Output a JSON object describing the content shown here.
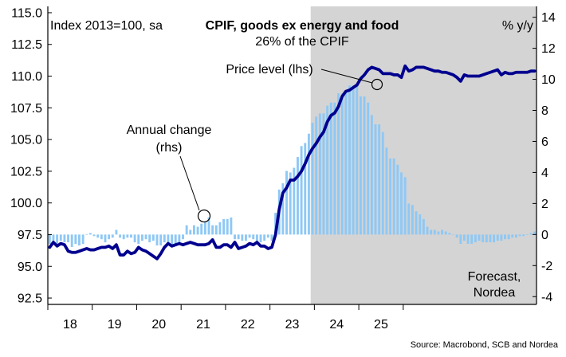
{
  "chart_data": {
    "type": "bar+line",
    "title": "CPIF, goods ex energy and food",
    "subtitle": "26% of the CPIF",
    "left_axis_label": "Index 2013=100, sa",
    "right_axis_label": "% y/y",
    "source": "Source: Macrobond, SCB and Nordea",
    "forecast_label": [
      "Forecast,",
      "Nordea"
    ],
    "annotations": {
      "price_level": "Price level (lhs)",
      "annual_change": [
        "Annual change",
        "(rhs)"
      ]
    },
    "x_tick_labels": [
      "18",
      "19",
      "20",
      "21",
      "22",
      "23",
      "24",
      "25"
    ],
    "ylim_left": [
      92.0,
      115.5
    ],
    "yticks_left": [
      "92.5",
      "95.0",
      "97.5",
      "100.0",
      "102.5",
      "105.0",
      "107.5",
      "110.0",
      "112.5",
      "115.0"
    ],
    "ylim_right": [
      -4.5,
      14.7
    ],
    "yticks_right": [
      "-4",
      "-2",
      "0",
      "2",
      "4",
      "6",
      "8",
      "10",
      "12",
      "14"
    ],
    "start_period": "2018-01",
    "forecast_start": "2023-12",
    "colors": {
      "line": "#00008f",
      "bars": "#8ec8f5",
      "forecast_shade": "#d4d4d4",
      "axis": "#000000"
    },
    "series": [
      {
        "name": "Price level (lhs)",
        "axis": "left",
        "type": "line",
        "values": [
          96.5,
          96.9,
          96.6,
          96.8,
          96.7,
          96.2,
          96.1,
          96.1,
          96.2,
          96.3,
          96.4,
          96.3,
          96.3,
          96.4,
          96.5,
          96.5,
          96.6,
          96.4,
          96.7,
          95.9,
          95.9,
          96.2,
          96.0,
          96.1,
          96.5,
          96.3,
          96.2,
          96.0,
          95.8,
          95.6,
          96.0,
          96.5,
          96.8,
          96.6,
          96.7,
          96.8,
          96.7,
          96.8,
          96.9,
          96.8,
          96.7,
          96.7,
          96.7,
          96.8,
          97.1,
          96.5,
          96.5,
          96.7,
          96.7,
          96.5,
          96.9,
          96.4,
          96.5,
          96.6,
          96.8,
          96.7,
          96.9,
          96.6,
          96.6,
          96.4,
          96.5,
          97.5,
          99.5,
          100.8,
          101.2,
          101.8,
          101.8,
          102.1,
          102.5,
          103.1,
          103.8,
          104.3,
          104.7,
          105.2,
          105.6,
          106.4,
          106.9,
          107.1,
          107.6,
          108.4,
          108.8,
          108.9,
          109.1,
          109.3,
          109.8,
          110.1,
          110.5,
          110.7,
          110.6,
          110.5,
          110.2,
          110.2,
          110.2,
          110.1,
          110.1,
          109.9,
          110.8,
          110.4,
          110.5,
          110.7,
          110.7,
          110.7,
          110.6,
          110.5,
          110.4,
          110.4,
          110.3,
          110.3,
          110.2,
          110.1,
          109.9,
          109.6,
          110.1,
          110.0,
          110.0,
          110.0,
          110.0,
          110.1,
          110.2,
          110.3,
          110.4,
          110.5,
          110.1,
          110.3,
          110.2,
          110.2,
          110.3,
          110.3,
          110.3,
          110.3,
          110.4,
          110.4
        ]
      },
      {
        "name": "Annual change (rhs)",
        "axis": "right",
        "type": "bar",
        "values": [
          -0.6,
          -0.4,
          -0.6,
          -0.4,
          -0.5,
          -0.5,
          -0.8,
          -0.6,
          -0.7,
          -0.6,
          0.0,
          0.1,
          -0.1,
          -0.2,
          -0.3,
          -0.5,
          -0.3,
          -0.2,
          0.3,
          -0.2,
          -0.3,
          -0.2,
          -0.2,
          -0.5,
          -0.6,
          -0.4,
          -0.3,
          -0.5,
          -0.4,
          -0.7,
          -0.7,
          -0.5,
          -0.6,
          -0.8,
          -0.7,
          -0.5,
          -0.3,
          0.6,
          0.3,
          0.6,
          0.5,
          0.7,
          0.8,
          1.1,
          0.6,
          0.6,
          0.8,
          1.0,
          1.0,
          1.1,
          -0.3,
          -0.3,
          -0.4,
          -0.4,
          -0.2,
          -0.3,
          -0.4,
          -0.5,
          -0.4,
          -0.2,
          -0.4,
          1.4,
          2.9,
          3.3,
          4.1,
          4.0,
          4.3,
          5.0,
          5.7,
          5.9,
          6.5,
          7.2,
          7.6,
          7.8,
          7.8,
          8.3,
          8.5,
          8.5,
          9.1,
          9.1,
          9.2,
          9.6,
          9.6,
          9.6,
          8.9,
          8.9,
          8.5,
          7.7,
          7.1,
          7.1,
          6.6,
          5.6,
          4.9,
          4.9,
          4.5,
          4.0,
          3.7,
          2.0,
          1.9,
          1.5,
          1.3,
          1.0,
          0.5,
          0.3,
          0.3,
          0.2,
          0.3,
          0.2,
          0.1,
          0.0,
          -0.2,
          -0.6,
          -0.4,
          -0.6,
          -0.6,
          -0.5,
          -0.4,
          -0.5,
          -0.5,
          -0.5,
          -0.5,
          -0.4,
          -0.4,
          -0.3,
          -0.3,
          -0.2,
          -0.2,
          -0.1,
          -0.1,
          0.0,
          0.1,
          0.2
        ]
      }
    ]
  }
}
